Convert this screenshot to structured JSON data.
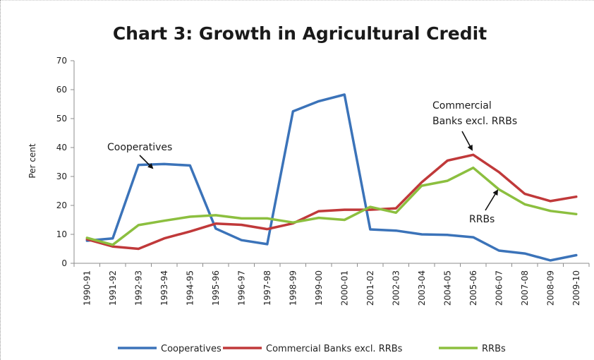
{
  "chart_data": {
    "type": "line",
    "title": "Chart 3: Growth in Agricultural Credit",
    "xlabel": "",
    "ylabel": "Per cent",
    "ylim": [
      0,
      70
    ],
    "yticks": [
      0,
      10,
      20,
      30,
      40,
      50,
      60,
      70
    ],
    "grid": false,
    "legend_position": "bottom",
    "categories": [
      "1990-91",
      "1991-92",
      "1992-93",
      "1993-94",
      "1994-95",
      "1995-96",
      "1996-97",
      "1997-98",
      "1998-99",
      "1999-00",
      "2000-01",
      "2001-02",
      "2002-03",
      "2003-04",
      "2004-05",
      "2005-06",
      "2006-07",
      "2007-08",
      "2008-09",
      "2009-10"
    ],
    "series": [
      {
        "name": "Cooperatives",
        "color": "#3b73b9",
        "values": [
          7.8,
          8.6,
          34.0,
          34.3,
          33.8,
          12.0,
          8.0,
          6.6,
          52.5,
          56.0,
          58.3,
          11.7,
          11.3,
          10.0,
          9.8,
          9.0,
          4.4,
          3.4,
          1.0,
          2.8
        ]
      },
      {
        "name": "Commercial Banks excl. RRBs",
        "color": "#c0393a",
        "values": [
          8.3,
          5.8,
          5.0,
          8.6,
          11.0,
          13.7,
          13.3,
          11.8,
          13.8,
          18.0,
          18.5,
          18.5,
          19.0,
          28.0,
          35.5,
          37.5,
          31.5,
          24.0,
          21.5,
          23.0
        ]
      },
      {
        "name": "RRBs",
        "color": "#8cbf3f",
        "values": [
          8.8,
          6.4,
          13.2,
          14.7,
          16.1,
          16.6,
          15.5,
          15.5,
          14.1,
          15.7,
          15.0,
          19.5,
          17.5,
          26.8,
          28.5,
          33.0,
          25.5,
          20.4,
          18.1,
          17.0
        ]
      }
    ],
    "annotations": [
      {
        "text": "Cooperatives",
        "points_to": {
          "series": "Cooperatives",
          "category": "1992-93"
        }
      },
      {
        "text": "Commercial",
        "line2": "Banks excl. RRBs",
        "points_to": {
          "series": "Commercial Banks excl. RRBs",
          "category": "2005-06"
        }
      },
      {
        "text": "RRBs",
        "points_to": {
          "series": "RRBs",
          "category": "2006-07"
        }
      }
    ]
  }
}
